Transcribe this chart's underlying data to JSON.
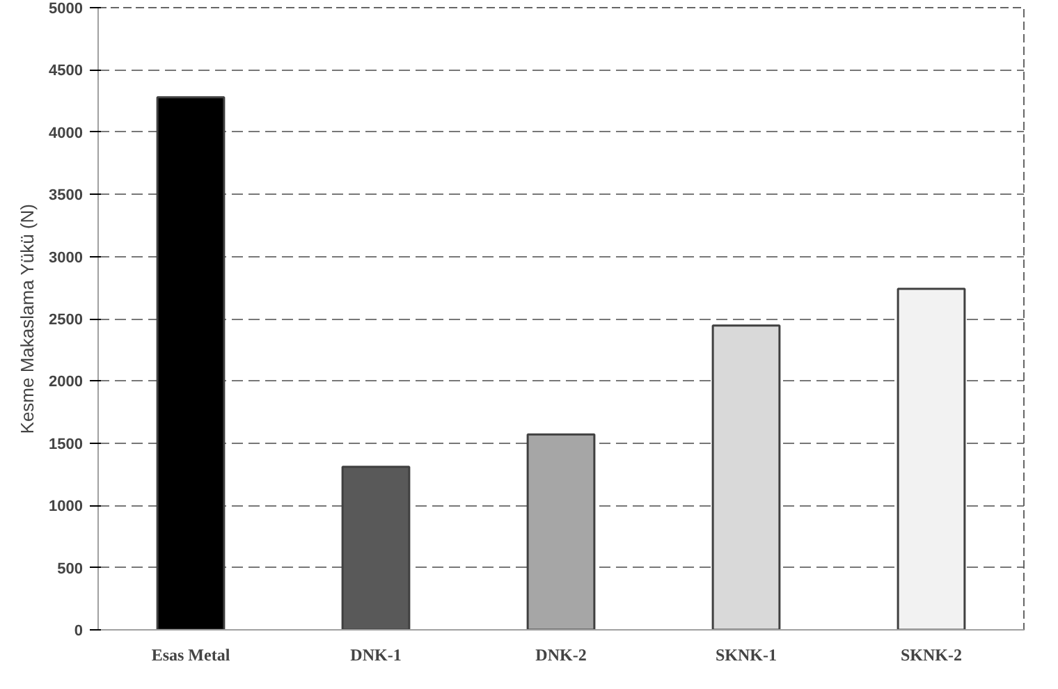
{
  "chart_data": {
    "type": "bar",
    "ylabel": "Kesme Makaslama Yükü (N)",
    "categories": [
      "Esas Metal",
      "DNK-1",
      "DNK-2",
      "SKNK-1",
      "SKNK-2"
    ],
    "values": [
      4280,
      1310,
      1570,
      2445,
      2740
    ],
    "colors": [
      "#000000",
      "#595959",
      "#a6a6a6",
      "#d9d9d9",
      "#f2f2f2"
    ],
    "ylim": [
      0,
      5000
    ],
    "yticks": [
      0,
      500,
      1000,
      1500,
      2000,
      2500,
      3000,
      3500,
      4000,
      4500,
      5000
    ],
    "grid": "y"
  }
}
